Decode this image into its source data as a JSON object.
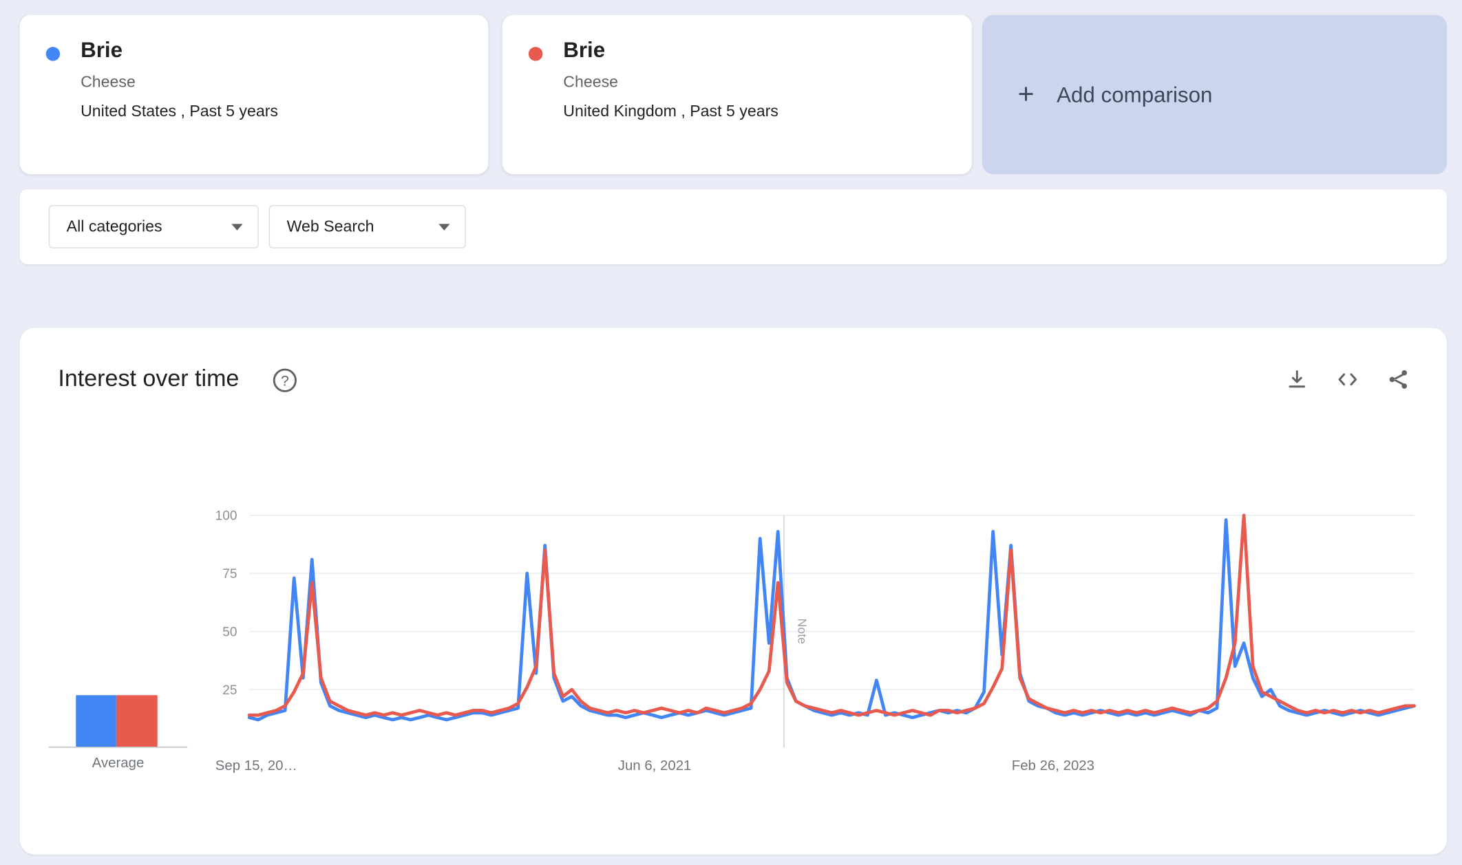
{
  "comparison": {
    "terms": [
      {
        "term": "Brie",
        "subtitle": "Cheese",
        "scope": "United States , Past 5 years",
        "color": "#4285f4"
      },
      {
        "term": "Brie",
        "subtitle": "Cheese",
        "scope": "United Kingdom , Past 5 years",
        "color": "#e8594e"
      }
    ],
    "add_label": "Add comparison",
    "plus_icon": "+"
  },
  "filters": {
    "category": "All categories",
    "search_type": "Web Search"
  },
  "interest_over_time": {
    "title": "Interest over time",
    "average_label": "Average"
  },
  "chart_data": {
    "type": "line",
    "title": "Interest over time",
    "ylim": [
      0,
      100
    ],
    "y_ticks": [
      25,
      50,
      75,
      100
    ],
    "grid": true,
    "legend_position": "none",
    "x_tick_labels": [
      {
        "label": "Sep 15, 20…",
        "pos": 0.006
      },
      {
        "label": "Jun 6, 2021",
        "pos": 0.348
      },
      {
        "label": "Feb 26, 2023",
        "pos": 0.69
      }
    ],
    "note_marker": {
      "label": "Note",
      "pos": 0.459
    },
    "x_description": "Weekly interest, Sep 15 2019 - Sep 2024 (Past 5 years), seasonal peaks each December",
    "series": [
      {
        "name": "Brie (United States)",
        "color": "#4285f4",
        "average": 22,
        "values": [
          13,
          12,
          14,
          15,
          16,
          73,
          30,
          81,
          28,
          18,
          16,
          15,
          14,
          13,
          14,
          13,
          12,
          13,
          12,
          13,
          14,
          13,
          12,
          13,
          14,
          15,
          15,
          14,
          15,
          16,
          17,
          75,
          32,
          87,
          30,
          20,
          22,
          18,
          16,
          15,
          14,
          14,
          13,
          14,
          15,
          14,
          13,
          14,
          15,
          14,
          15,
          16,
          15,
          14,
          15,
          16,
          17,
          90,
          45,
          93,
          30,
          20,
          18,
          16,
          15,
          14,
          15,
          14,
          15,
          14,
          29,
          14,
          15,
          14,
          13,
          14,
          15,
          16,
          15,
          16,
          15,
          17,
          24,
          93,
          40,
          87,
          32,
          20,
          18,
          17,
          15,
          14,
          15,
          14,
          15,
          16,
          15,
          14,
          15,
          14,
          15,
          14,
          15,
          16,
          15,
          14,
          16,
          15,
          17,
          98,
          35,
          45,
          30,
          22,
          25,
          18,
          16,
          15,
          14,
          15,
          16,
          15,
          14,
          15,
          16,
          15,
          14,
          15,
          16,
          17,
          18
        ]
      },
      {
        "name": "Brie (United Kingdom)",
        "color": "#e8594e",
        "average": 22,
        "values": [
          14,
          14,
          15,
          16,
          18,
          24,
          32,
          71,
          30,
          20,
          18,
          16,
          15,
          14,
          15,
          14,
          15,
          14,
          15,
          16,
          15,
          14,
          15,
          14,
          15,
          16,
          16,
          15,
          16,
          17,
          19,
          26,
          35,
          85,
          32,
          22,
          25,
          20,
          17,
          16,
          15,
          16,
          15,
          16,
          15,
          16,
          17,
          16,
          15,
          16,
          15,
          17,
          16,
          15,
          16,
          17,
          19,
          25,
          33,
          71,
          28,
          20,
          18,
          17,
          16,
          15,
          16,
          15,
          14,
          15,
          16,
          15,
          14,
          15,
          16,
          15,
          14,
          16,
          16,
          15,
          16,
          17,
          19,
          26,
          34,
          85,
          30,
          21,
          19,
          17,
          16,
          15,
          16,
          15,
          16,
          15,
          16,
          15,
          16,
          15,
          16,
          15,
          16,
          17,
          16,
          15,
          16,
          17,
          20,
          30,
          45,
          100,
          35,
          24,
          22,
          20,
          18,
          16,
          15,
          16,
          15,
          16,
          15,
          16,
          15,
          16,
          15,
          16,
          17,
          18,
          18
        ]
      }
    ]
  }
}
